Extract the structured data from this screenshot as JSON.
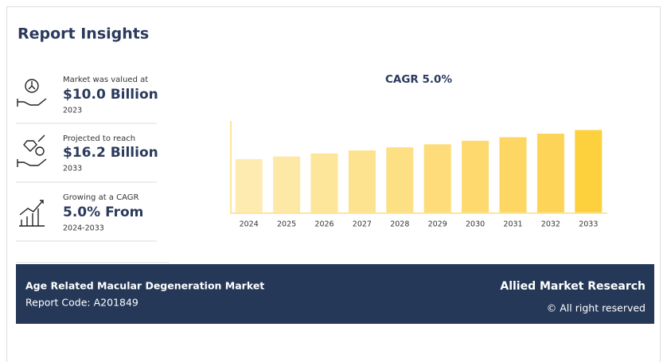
{
  "title": "Report Insights",
  "insights": [
    {
      "label": "Market was valued at",
      "value": "$10.0 Billion",
      "period": "2023"
    },
    {
      "label": "Projected to reach",
      "value": "$16.2 Billion",
      "period": "2033"
    },
    {
      "label": "Growing at a CAGR",
      "value": "5.0% From",
      "period": "2024-2033"
    }
  ],
  "chart_data": {
    "type": "bar",
    "title": "CAGR 5.0%",
    "categories": [
      "2024",
      "2025",
      "2026",
      "2027",
      "2028",
      "2029",
      "2030",
      "2031",
      "2032",
      "2033"
    ],
    "values": [
      10.5,
      11.0,
      11.6,
      12.2,
      12.8,
      13.4,
      14.1,
      14.8,
      15.5,
      16.2
    ],
    "colors": [
      "#fdebb0",
      "#fde8a5",
      "#fde59a",
      "#fde28f",
      "#fddf84",
      "#fddc79",
      "#fdd96e",
      "#fdd663",
      "#fdd458",
      "#fdd13d"
    ],
    "ylim": [
      0,
      18
    ]
  },
  "footer": {
    "market": "Age Related Macular Degeneration Market",
    "report_code": "Report Code: A201849",
    "publisher": "Allied Market Research",
    "rights": "© All right reserved"
  }
}
